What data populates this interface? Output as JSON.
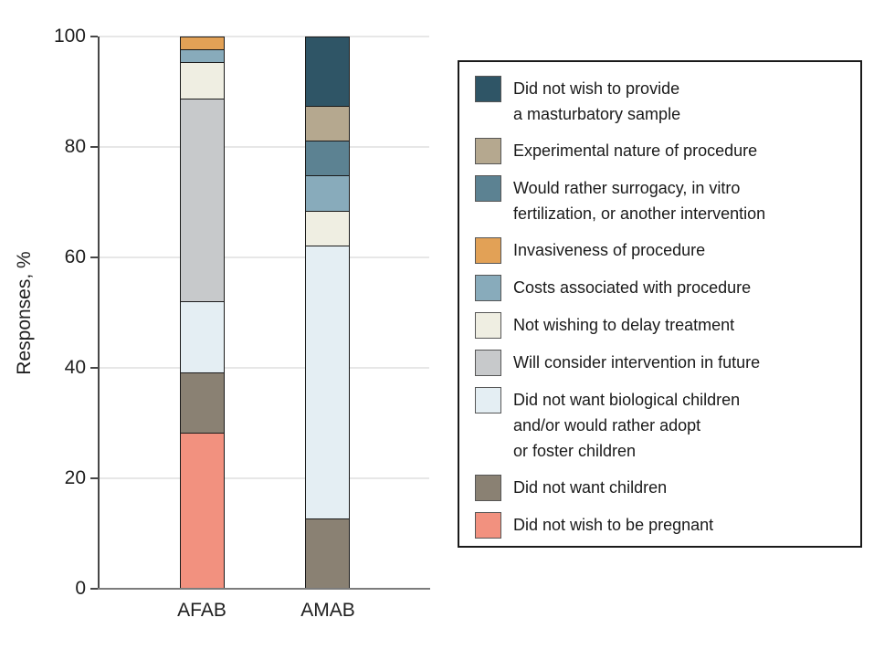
{
  "figure": {
    "background": "#ffffff",
    "text_color": "#1a1a1a",
    "gridline_color": "#e7e7e7",
    "axis_color": "#474747",
    "segment_border_color": "#1b1b1b"
  },
  "chart_data": {
    "type": "bar",
    "stacked": true,
    "orientation": "vertical",
    "title": "",
    "xlabel": "",
    "ylabel": "Responses, %",
    "ylim": [
      0,
      100
    ],
    "yticks": [
      0,
      20,
      40,
      60,
      80,
      100
    ],
    "grid": "horizontal",
    "legend_position": "right",
    "categories": [
      "AFAB",
      "AMAB"
    ],
    "stack_order_note": "first series is at the bottom of the stack",
    "series": [
      {
        "name": "Did not wish to be pregnant",
        "color": "#F2917F",
        "values": [
          28.3,
          0
        ]
      },
      {
        "name": "Did not want children",
        "color": "#8A8173",
        "values": [
          10.9,
          12.5
        ]
      },
      {
        "name": "Did not want biological children and/or would rather adopt or foster children",
        "color": "#E4EEF3",
        "values": [
          13.0,
          50.0
        ]
      },
      {
        "name": "Will consider intervention in future",
        "color": "#C7C9CB",
        "values": [
          37.0,
          0
        ]
      },
      {
        "name": "Not wishing to delay treatment",
        "color": "#EFEEE2",
        "values": [
          6.5,
          6.25
        ]
      },
      {
        "name": "Costs associated with procedure",
        "color": "#88ABBB",
        "values": [
          2.2,
          6.25
        ]
      },
      {
        "name": "Invasiveness of procedure",
        "color": "#E2A156",
        "values": [
          2.2,
          0
        ]
      },
      {
        "name": "Would rather surrogacy, in vitro fertilization, or another intervention",
        "color": "#5C8292",
        "values": [
          0,
          6.25
        ]
      },
      {
        "name": "Experimental nature of procedure",
        "color": "#B5A88F",
        "values": [
          0,
          6.25
        ]
      },
      {
        "name": "Did not wish to provide a masturbatory sample",
        "color": "#2F5566",
        "values": [
          0,
          12.5
        ]
      }
    ]
  },
  "legend": {
    "items": [
      {
        "color": "#2F5566",
        "lines": [
          "Did not wish to provide",
          "a masturbatory sample"
        ]
      },
      {
        "color": "#B5A88F",
        "lines": [
          "Experimental nature of procedure"
        ]
      },
      {
        "color": "#5C8292",
        "lines": [
          "Would rather surrogacy, in vitro",
          "fertilization, or another intervention"
        ]
      },
      {
        "color": "#E2A156",
        "lines": [
          "Invasiveness of procedure"
        ]
      },
      {
        "color": "#88ABBB",
        "lines": [
          "Costs associated with procedure"
        ]
      },
      {
        "color": "#EFEEE2",
        "lines": [
          "Not wishing to delay treatment"
        ]
      },
      {
        "color": "#C7C9CB",
        "lines": [
          "Will consider intervention in future"
        ]
      },
      {
        "color": "#E4EEF3",
        "lines": [
          "Did not want biological children",
          "and/or would rather adopt",
          "or foster children"
        ]
      },
      {
        "color": "#8A8173",
        "lines": [
          "Did not want children"
        ]
      },
      {
        "color": "#F2917F",
        "lines": [
          "Did not wish to be pregnant"
        ]
      }
    ]
  }
}
